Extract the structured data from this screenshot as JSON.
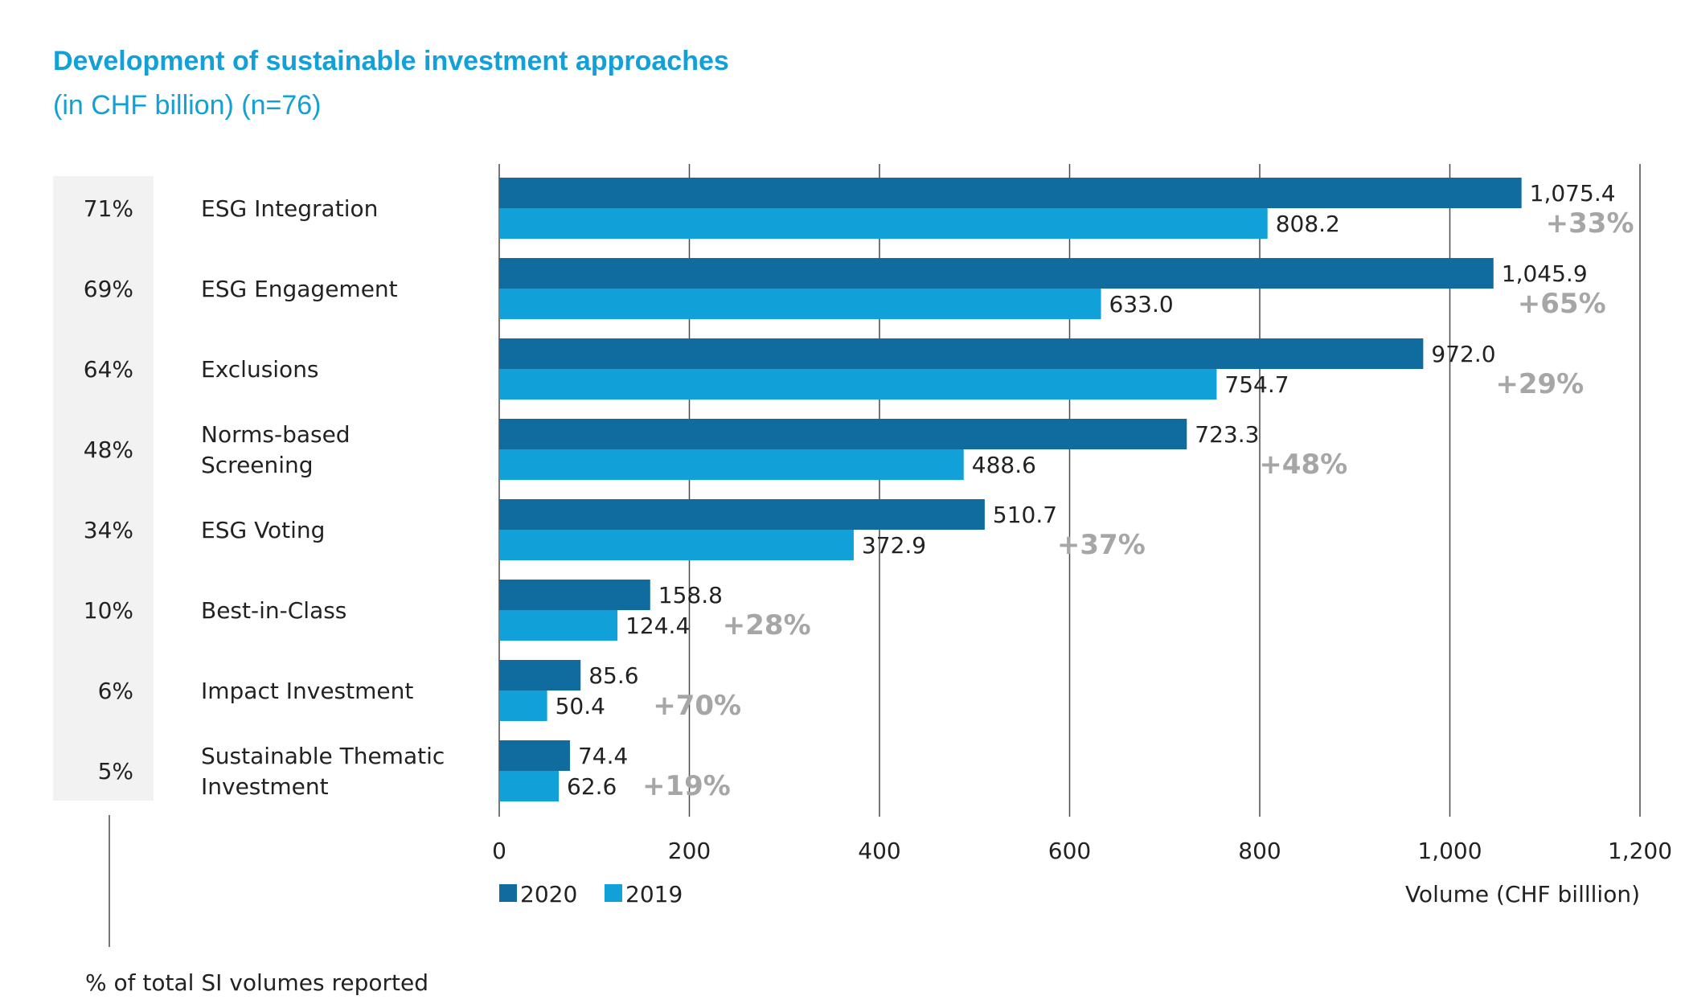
{
  "chart_data": {
    "type": "bar",
    "orientation": "horizontal",
    "title": "Development of sustainable investment approaches",
    "subtitle": "(in CHF billion) (n=76)",
    "xlabel": "Volume (CHF billlion)",
    "xlim": [
      0,
      1200
    ],
    "xticks": [
      0,
      200,
      400,
      600,
      800,
      1000,
      1200
    ],
    "xtick_labels": [
      "0",
      "200",
      "400",
      "600",
      "800",
      "1,000",
      "1,200"
    ],
    "grid": true,
    "legend_position": "bottom-left",
    "categories": [
      [
        "ESG Integration"
      ],
      [
        "ESG Engagement"
      ],
      [
        "Exclusions"
      ],
      [
        "Norms-based",
        "Screening"
      ],
      [
        "ESG Voting"
      ],
      [
        "Best-in-Class"
      ],
      [
        "Impact Investment"
      ],
      [
        "Sustainable Thematic",
        "Investment"
      ]
    ],
    "share_of_total": [
      "71%",
      "69%",
      "64%",
      "48%",
      "34%",
      "10%",
      "6%",
      "5%"
    ],
    "share_caption": "% of total SI volumes reported",
    "series": [
      {
        "name": "2020",
        "color": "#106b9e",
        "values": [
          1075.4,
          1045.9,
          972.0,
          723.3,
          510.7,
          158.8,
          85.6,
          74.4
        ],
        "labels": [
          "1,075.4",
          "1,045.9",
          "972.0",
          "723.3",
          "510.7",
          "158.8",
          "85.6",
          "74.4"
        ]
      },
      {
        "name": "2019",
        "color": "#12a0d8",
        "values": [
          808.2,
          633.0,
          754.7,
          488.6,
          372.9,
          124.4,
          50.4,
          62.6
        ],
        "labels": [
          "808.2",
          "633.0",
          "754.7",
          "488.6",
          "372.9",
          "124.4",
          "50.4",
          "62.6"
        ]
      }
    ],
    "growth": [
      "+33%",
      "+65%",
      "+29%",
      "+48%",
      "+37%",
      "+28%",
      "+70%",
      "+19%"
    ]
  },
  "colors": {
    "title": "#12a0d8",
    "grid": "#4a4a4a",
    "share_panel": "#f2f2f2",
    "growth": "#a6a6a6"
  }
}
